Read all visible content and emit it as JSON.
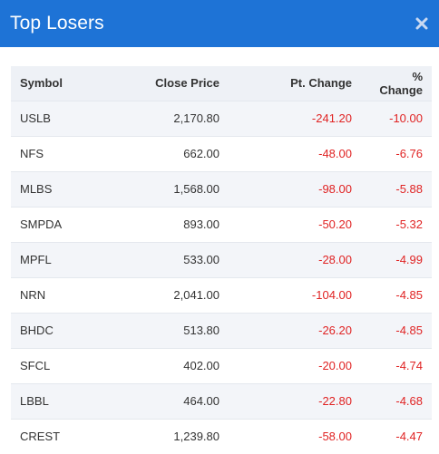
{
  "header": {
    "title": "Top Losers"
  },
  "table": {
    "columns": [
      "Symbol",
      "Close Price",
      "Pt. Change",
      "% Change"
    ],
    "rows": [
      [
        "USLB",
        "2,170.80",
        "-241.20",
        "-10.00"
      ],
      [
        "NFS",
        "662.00",
        "-48.00",
        "-6.76"
      ],
      [
        "MLBS",
        "1,568.00",
        "-98.00",
        "-5.88"
      ],
      [
        "SMPDA",
        "893.00",
        "-50.20",
        "-5.32"
      ],
      [
        "MPFL",
        "533.00",
        "-28.00",
        "-4.99"
      ],
      [
        "NRN",
        "2,041.00",
        "-104.00",
        "-4.85"
      ],
      [
        "BHDC",
        "513.80",
        "-26.20",
        "-4.85"
      ],
      [
        "SFCL",
        "402.00",
        "-20.00",
        "-4.74"
      ],
      [
        "LBBL",
        "464.00",
        "-22.80",
        "-4.68"
      ],
      [
        "CREST",
        "1,239.80",
        "-58.00",
        "-4.47"
      ]
    ]
  },
  "colors": {
    "header_bg": "#1e73d6",
    "negative": "#e02323",
    "row_alt": "#f3f5f9"
  },
  "icons": {
    "close": "close-icon"
  }
}
